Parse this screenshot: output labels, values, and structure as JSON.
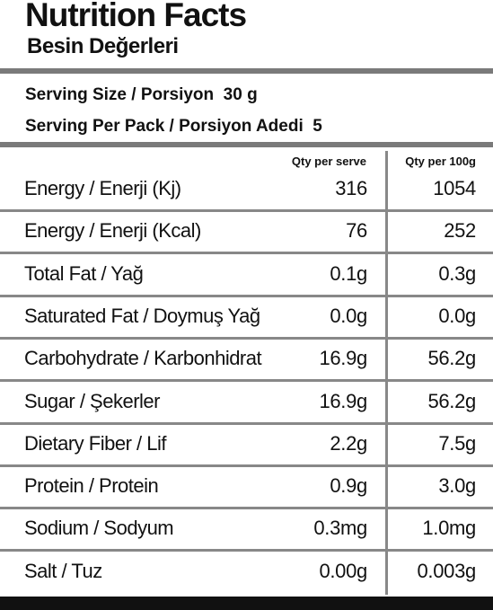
{
  "header": {
    "title": "Nutrition Facts",
    "subtitle": "Besin Değerleri"
  },
  "serving": {
    "size": "Serving Size / Porsiyon  30 g",
    "per_pack": "Serving Per Pack / Porsiyon Adedi  5"
  },
  "table": {
    "columns": [
      "Qty per serve",
      "Qty per 100g"
    ],
    "rows": [
      [
        "Energy / Enerji (Kj)",
        "316",
        "1054"
      ],
      [
        "Energy / Enerji (Kcal)",
        "76",
        "252"
      ],
      [
        "Total Fat / Yağ",
        "0.1g",
        "0.3g"
      ],
      [
        "Saturated Fat / Doymuş Yağ",
        "0.0g",
        "0.0g"
      ],
      [
        "Carbohydrate / Karbonhidrat",
        "16.9g",
        "56.2g"
      ],
      [
        "Sugar / Şekerler",
        "16.9g",
        "56.2g"
      ],
      [
        "Dietary Fiber / Lif",
        "2.2g",
        "7.5g"
      ],
      [
        "Protein / Protein",
        "0.9g",
        "3.0g"
      ],
      [
        "Sodium / Sodyum",
        "0.3mg",
        "1.0mg"
      ],
      [
        "Salt / Tuz",
        "0.00g",
        "0.003g"
      ]
    ]
  }
}
